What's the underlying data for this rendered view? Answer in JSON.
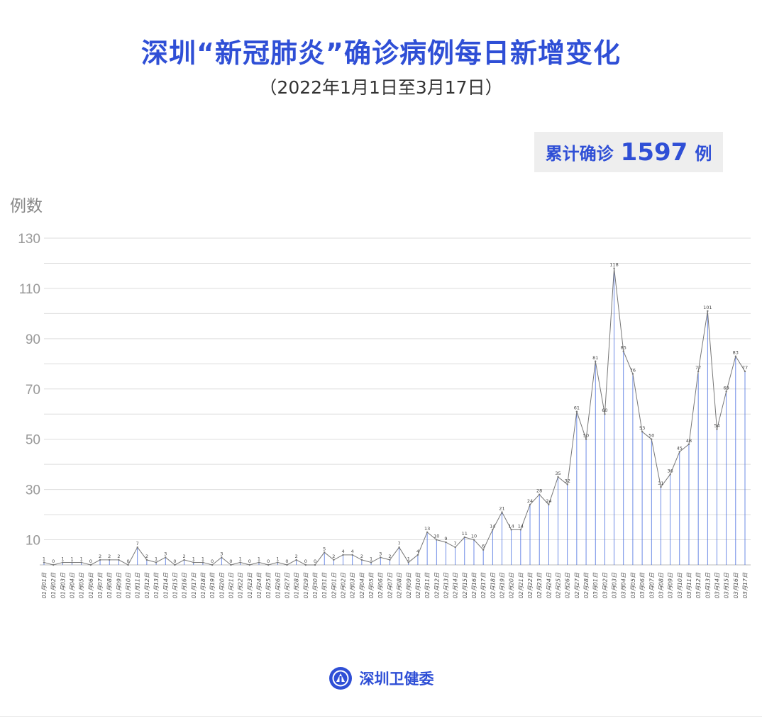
{
  "header": {
    "title": "深圳“新冠肺炎”确诊病例每日新增变化",
    "subtitle": "（2022年1月1日至3月17日）"
  },
  "summary": {
    "label": "累计确诊",
    "value": "1597",
    "unit": "例"
  },
  "footer": {
    "org_name": "深圳卫健委"
  },
  "colors": {
    "title": "#2f4fd6",
    "line": "#777777",
    "drop_lines": "#4a6fe0",
    "grid": "#dddddd"
  },
  "chart_data": {
    "type": "line",
    "title": "深圳“新冠肺炎”确诊病例每日新增变化",
    "subtitle": "（2022年1月1日至3月17日）",
    "ylabel": "例数",
    "xlabel": "",
    "ylim": [
      0,
      130
    ],
    "yticks": [
      10,
      30,
      50,
      70,
      90,
      110,
      130
    ],
    "grid": true,
    "x": [
      "01月01日",
      "01月02日",
      "01月03日",
      "01月04日",
      "01月05日",
      "01月06日",
      "01月07日",
      "01月08日",
      "01月09日",
      "01月10日",
      "01月11日",
      "01月12日",
      "01月13日",
      "01月14日",
      "01月15日",
      "01月16日",
      "01月17日",
      "01月18日",
      "01月19日",
      "01月20日",
      "01月21日",
      "01月22日",
      "01月23日",
      "01月24日",
      "01月25日",
      "01月26日",
      "01月27日",
      "01月28日",
      "01月29日",
      "01月30日",
      "01月31日",
      "02月01日",
      "02月02日",
      "02月03日",
      "02月04日",
      "02月05日",
      "02月06日",
      "02月07日",
      "02月08日",
      "02月09日",
      "02月10日",
      "02月11日",
      "02月12日",
      "02月13日",
      "02月14日",
      "02月15日",
      "02月16日",
      "02月17日",
      "02月18日",
      "02月19日",
      "02月20日",
      "02月21日",
      "02月22日",
      "02月23日",
      "02月24日",
      "02月25日",
      "02月26日",
      "02月27日",
      "02月28日",
      "03月01日",
      "03月02日",
      "03月03日",
      "03月04日",
      "03月05日",
      "03月06日",
      "03月07日",
      "03月08日",
      "03月09日",
      "03月10日",
      "03月11日",
      "03月12日",
      "03月13日",
      "03月14日",
      "03月15日",
      "03月16日",
      "03月17日"
    ],
    "series": [
      {
        "values": [
          1,
          0,
          1,
          1,
          1,
          0,
          2,
          2,
          2,
          0,
          7,
          2,
          1,
          3,
          0,
          2,
          1,
          1,
          0,
          3,
          0,
          1,
          0,
          1,
          0,
          1,
          0,
          2,
          0,
          0,
          5,
          2,
          4,
          4,
          2,
          1,
          3,
          2,
          7,
          1,
          4,
          13,
          10,
          9,
          7,
          11,
          10,
          6,
          14,
          21,
          14,
          14,
          24,
          28,
          24,
          35,
          32,
          61,
          50,
          81,
          60,
          118,
          85,
          76,
          53,
          50,
          31,
          36,
          45,
          48,
          77,
          101,
          54,
          69,
          83,
          77
        ]
      }
    ]
  }
}
